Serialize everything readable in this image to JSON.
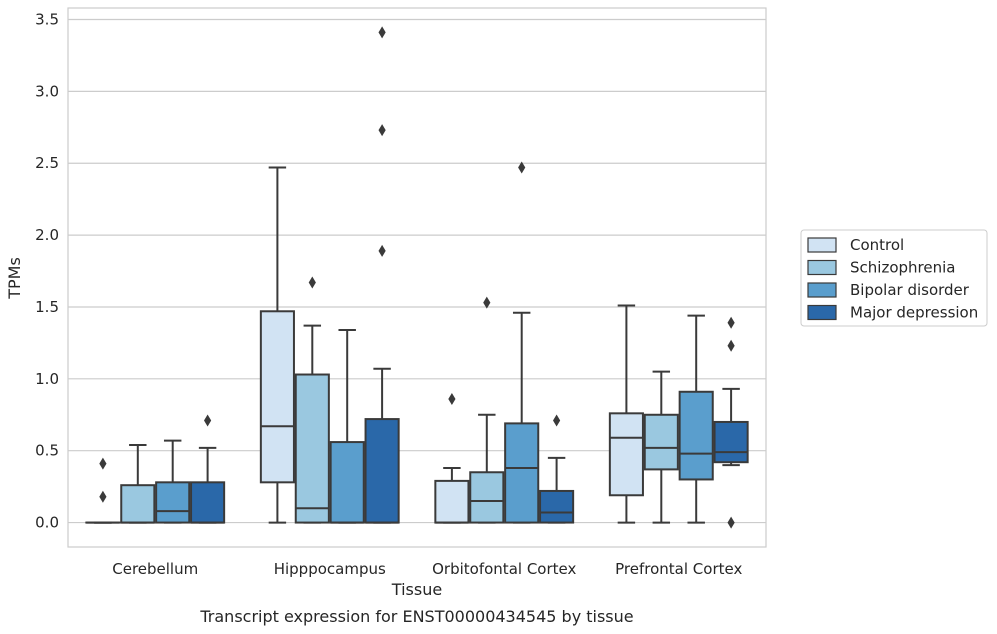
{
  "chart_data": {
    "type": "boxplot",
    "xlabel": "Tissue",
    "ylabel": "TPMs",
    "caption": "Transcript expression for ENST00000434545 by tissue",
    "ylim": [
      -0.17,
      3.58
    ],
    "yticks": [
      0.0,
      0.5,
      1.0,
      1.5,
      2.0,
      2.5,
      3.0,
      3.5
    ],
    "ytick_labels": [
      "0.0",
      "0.5",
      "1.0",
      "1.5",
      "2.0",
      "2.5",
      "3.0",
      "3.5"
    ],
    "grid": true,
    "legend_position": "right",
    "categories": [
      "Cerebellum",
      "Hipppocampus",
      "Orbitofontal Cortex",
      "Prefrontal Cortex"
    ],
    "series": [
      {
        "name": "Control",
        "color": "#d1e3f3",
        "boxes": [
          {
            "whislo": 0,
            "q1": 0,
            "med": 0,
            "q3": 0,
            "whishi": 0,
            "fliers": [
              0.41,
              0.18
            ]
          },
          {
            "whislo": 0,
            "q1": 0.28,
            "med": 0.67,
            "q3": 1.47,
            "whishi": 2.47,
            "fliers": []
          },
          {
            "whislo": 0,
            "q1": 0,
            "med": 0.0,
            "q3": 0.29,
            "whishi": 0.38,
            "fliers": [
              0.86
            ]
          },
          {
            "whislo": 0,
            "q1": 0.19,
            "med": 0.59,
            "q3": 0.76,
            "whishi": 1.51,
            "fliers": []
          }
        ]
      },
      {
        "name": "Schizophrenia",
        "color": "#9ac8e0",
        "boxes": [
          {
            "whislo": 0,
            "q1": 0,
            "med": 0,
            "q3": 0.26,
            "whishi": 0.54,
            "fliers": []
          },
          {
            "whislo": 0,
            "q1": 0,
            "med": 0.1,
            "q3": 1.03,
            "whishi": 1.37,
            "fliers": [
              1.67
            ]
          },
          {
            "whislo": 0,
            "q1": 0,
            "med": 0.15,
            "q3": 0.35,
            "whishi": 0.75,
            "fliers": [
              1.53
            ]
          },
          {
            "whislo": 0,
            "q1": 0.37,
            "med": 0.52,
            "q3": 0.75,
            "whishi": 1.05,
            "fliers": []
          }
        ]
      },
      {
        "name": "Bipolar disorder",
        "color": "#5a9ecd",
        "boxes": [
          {
            "whislo": 0,
            "q1": 0,
            "med": 0.08,
            "q3": 0.28,
            "whishi": 0.57,
            "fliers": []
          },
          {
            "whislo": 0,
            "q1": 0,
            "med": 0.0,
            "q3": 0.56,
            "whishi": 1.34,
            "fliers": []
          },
          {
            "whislo": 0,
            "q1": 0,
            "med": 0.38,
            "q3": 0.69,
            "whishi": 1.46,
            "fliers": [
              2.47
            ]
          },
          {
            "whislo": 0,
            "q1": 0.3,
            "med": 0.48,
            "q3": 0.91,
            "whishi": 1.44,
            "fliers": []
          }
        ]
      },
      {
        "name": "Major depression",
        "color": "#2a68a9",
        "boxes": [
          {
            "whislo": 0,
            "q1": 0,
            "med": 0,
            "q3": 0.28,
            "whishi": 0.52,
            "fliers": [
              0.71
            ]
          },
          {
            "whislo": 0,
            "q1": 0,
            "med": 0.0,
            "q3": 0.72,
            "whishi": 1.07,
            "fliers": [
              1.89,
              2.73,
              3.41
            ]
          },
          {
            "whislo": 0,
            "q1": 0,
            "med": 0.07,
            "q3": 0.22,
            "whishi": 0.45,
            "fliers": [
              0.71
            ]
          },
          {
            "whislo": 0.4,
            "q1": 0.42,
            "med": 0.49,
            "q3": 0.7,
            "whishi": 0.93,
            "fliers": [
              1.39,
              1.23,
              0.0
            ]
          }
        ]
      }
    ]
  }
}
